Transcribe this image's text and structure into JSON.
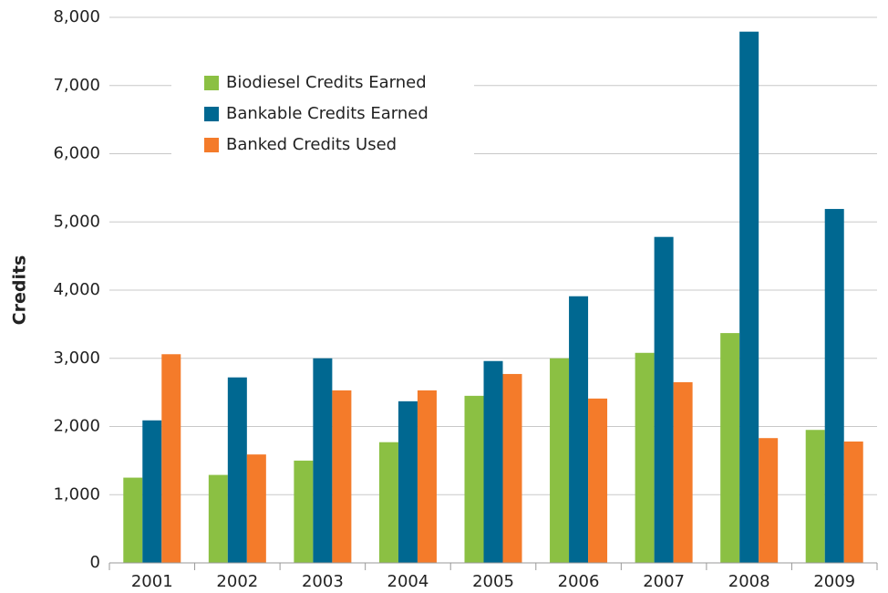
{
  "chart_data": {
    "type": "bar",
    "y_label": "Credits",
    "categories": [
      "2001",
      "2002",
      "2003",
      "2004",
      "2005",
      "2006",
      "2007",
      "2008",
      "2009"
    ],
    "series": [
      {
        "name": "Biodiesel Credits Earned",
        "color": "#8bc043",
        "values": [
          1250,
          1290,
          1500,
          1770,
          2450,
          3000,
          3080,
          3370,
          1950
        ]
      },
      {
        "name": "Bankable Credits Earned",
        "color": "#006891",
        "values": [
          2090,
          2720,
          3000,
          2370,
          2960,
          3910,
          4780,
          7790,
          5190
        ]
      },
      {
        "name": "Banked Credits Used",
        "color": "#f47b2a",
        "values": [
          3060,
          1590,
          2530,
          2530,
          2770,
          2410,
          2650,
          1830,
          1780
        ]
      }
    ],
    "ylim": [
      0,
      8000
    ],
    "yticks": [
      0,
      {
        "value": 1000,
        "label": "1,000"
      },
      {
        "value": 2000,
        "label": "2,000"
      },
      {
        "value": 3000,
        "label": "3,000"
      },
      {
        "value": 4000,
        "label": "4,000"
      },
      {
        "value": 5000,
        "label": "5,000"
      },
      {
        "value": 6000,
        "label": "6,000"
      },
      {
        "value": 7000,
        "label": "7,000"
      },
      {
        "value": 8000,
        "label": "8,000"
      }
    ],
    "grid": true,
    "legend": "upper left"
  }
}
